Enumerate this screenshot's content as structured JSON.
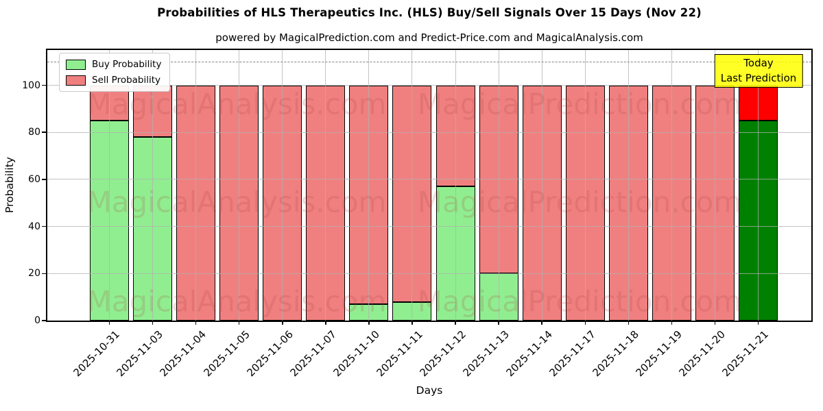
{
  "figure": {
    "title": "Probabilities of HLS Therapeutics Inc. (HLS) Buy/Sell Signals Over 15 Days (Nov 22)",
    "subtitle": "powered by MagicalPrediction.com and Predict-Price.com and MagicalAnalysis.com"
  },
  "chart_data": {
    "type": "bar",
    "stacked": true,
    "title": "Probabilities of HLS Therapeutics Inc. (HLS) Buy/Sell Signals Over 15 Days (Nov 22)",
    "subtitle": "powered by MagicalPrediction.com and Predict-Price.com and MagicalAnalysis.com",
    "xlabel": "Days",
    "ylabel": "Probability",
    "ylim": [
      0,
      115
    ],
    "yticks": [
      0,
      20,
      40,
      60,
      80,
      100
    ],
    "grid": true,
    "dashed_line_y": 110,
    "legend_position": "upper-left",
    "categories": [
      "2025-10-31",
      "2025-11-03",
      "2025-11-04",
      "2025-11-05",
      "2025-11-06",
      "2025-11-07",
      "2025-11-10",
      "2025-11-11",
      "2025-11-12",
      "2025-11-13",
      "2025-11-14",
      "2025-11-17",
      "2025-11-18",
      "2025-11-19",
      "2025-11-20",
      "2025-11-21"
    ],
    "series": [
      {
        "name": "Buy Probability",
        "color": "#90EE90",
        "values": [
          85,
          78,
          0,
          0,
          0,
          0,
          7,
          8,
          57,
          20,
          0,
          0,
          0,
          0,
          0,
          85
        ]
      },
      {
        "name": "Sell Probability",
        "color": "#F08080",
        "values": [
          15,
          22,
          100,
          100,
          100,
          100,
          93,
          92,
          43,
          80,
          100,
          100,
          100,
          100,
          100,
          15
        ]
      }
    ],
    "today": {
      "index": 15,
      "buy_color": "#008000",
      "sell_color": "#FF0000",
      "label_lines": [
        "Today",
        "Last Prediction"
      ],
      "label_bg": "#FFFF00"
    },
    "colors": {
      "edge": "#000000",
      "grid": "#b0b0b0",
      "dashed": "#7f7f7f"
    },
    "watermarks": [
      "MagicalAnalysis.com",
      "MagicalPrediction.com"
    ]
  }
}
